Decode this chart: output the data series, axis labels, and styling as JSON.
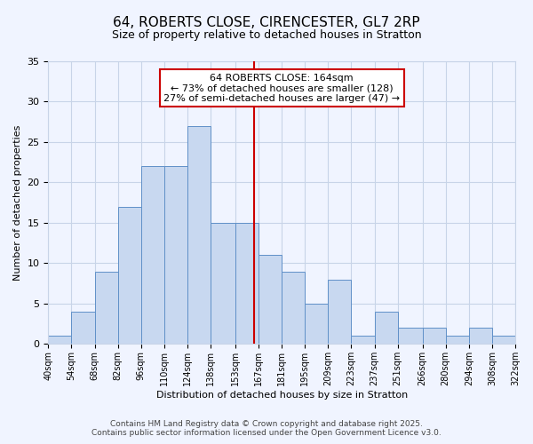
{
  "title": "64, ROBERTS CLOSE, CIRENCESTER, GL7 2RP",
  "subtitle": "Size of property relative to detached houses in Stratton",
  "xlabel": "Distribution of detached houses by size in Stratton",
  "ylabel": "Number of detached properties",
  "bin_labels": [
    "40sqm",
    "54sqm",
    "68sqm",
    "82sqm",
    "96sqm",
    "110sqm",
    "124sqm",
    "138sqm",
    "153sqm",
    "167sqm",
    "181sqm",
    "195sqm",
    "209sqm",
    "223sqm",
    "237sqm",
    "251sqm",
    "266sqm",
    "280sqm",
    "294sqm",
    "308sqm",
    "322sqm"
  ],
  "bin_edges": [
    40,
    54,
    68,
    82,
    96,
    110,
    124,
    138,
    153,
    167,
    181,
    195,
    209,
    223,
    237,
    251,
    266,
    280,
    294,
    308,
    322
  ],
  "counts": [
    1,
    4,
    9,
    17,
    22,
    22,
    27,
    15,
    15,
    11,
    9,
    5,
    8,
    1,
    4,
    2,
    2,
    1,
    2,
    1
  ],
  "bar_color": "#c8d8f0",
  "bar_edge_color": "#6090c8",
  "reference_line_x": 164,
  "reference_line_color": "#cc0000",
  "annotation_title": "64 ROBERTS CLOSE: 164sqm",
  "annotation_line1": "← 73% of detached houses are smaller (128)",
  "annotation_line2": "27% of semi-detached houses are larger (47) →",
  "annotation_box_facecolor": "#ffffff",
  "annotation_box_edgecolor": "#cc0000",
  "ylim": [
    0,
    35
  ],
  "yticks": [
    0,
    5,
    10,
    15,
    20,
    25,
    30,
    35
  ],
  "footer_line1": "Contains HM Land Registry data © Crown copyright and database right 2025.",
  "footer_line2": "Contains public sector information licensed under the Open Government Licence v3.0.",
  "bg_color": "#f0f4ff",
  "grid_color": "#c8d4e8",
  "title_fontsize": 11,
  "subtitle_fontsize": 9,
  "ylabel_fontsize": 8,
  "xlabel_fontsize": 8,
  "annotation_fontsize": 8,
  "footer_fontsize": 6.5
}
